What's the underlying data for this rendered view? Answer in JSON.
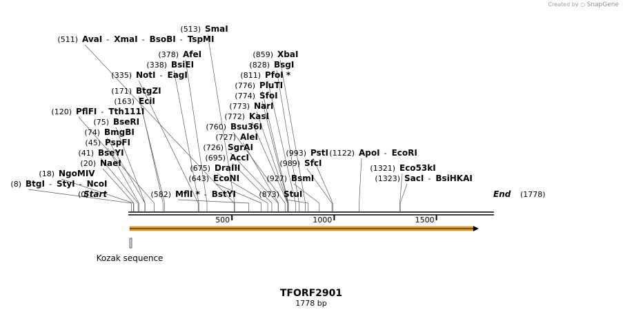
{
  "watermark": {
    "prefix": "Created by",
    "brand": "SnapGene"
  },
  "map": {
    "name": "TFORF2901",
    "length_label": "1778 bp",
    "length_bp": 1778,
    "ticks": [
      "500",
      "1000",
      "1500"
    ],
    "start_label": "Start",
    "start_pos": "(0)",
    "end_label": "End",
    "end_pos": "(1778)",
    "features": [
      {
        "name": "Kozak sequence",
        "type": "misc",
        "start": 0,
        "end": 10
      }
    ],
    "orf": {
      "start": 0,
      "end": 1680,
      "color": "#f0a020"
    },
    "sites": [
      {
        "pos": "(8)",
        "pos_bp": 8,
        "names": [
          "BtgI",
          "StyI",
          "NcoI"
        ]
      },
      {
        "pos": "(18)",
        "pos_bp": 18,
        "names": [
          "NgoMIV"
        ]
      },
      {
        "pos": "(20)",
        "pos_bp": 20,
        "names": [
          "NaeI"
        ]
      },
      {
        "pos": "(41)",
        "pos_bp": 41,
        "names": [
          "BseYI"
        ]
      },
      {
        "pos": "(45)",
        "pos_bp": 45,
        "names": [
          "PspFI"
        ]
      },
      {
        "pos": "(74)",
        "pos_bp": 74,
        "names": [
          "BmgBI"
        ]
      },
      {
        "pos": "(75)",
        "pos_bp": 75,
        "names": [
          "BseRI"
        ]
      },
      {
        "pos": "(120)",
        "pos_bp": 120,
        "names": [
          "PflFI",
          "Tth111I"
        ]
      },
      {
        "pos": "(163)",
        "pos_bp": 163,
        "names": [
          "EciI"
        ]
      },
      {
        "pos": "(171)",
        "pos_bp": 171,
        "names": [
          "BtgZI"
        ]
      },
      {
        "pos": "(335)",
        "pos_bp": 335,
        "names": [
          "NotI",
          "EagI"
        ]
      },
      {
        "pos": "(338)",
        "pos_bp": 338,
        "names": [
          "BsiEI"
        ]
      },
      {
        "pos": "(378)",
        "pos_bp": 378,
        "names": [
          "AfeI"
        ]
      },
      {
        "pos": "(511)",
        "pos_bp": 511,
        "names": [
          "AvaI",
          "XmaI",
          "BsoBI",
          "TspMI"
        ]
      },
      {
        "pos": "(513)",
        "pos_bp": 513,
        "names": [
          "SmaI"
        ]
      },
      {
        "pos": "(582)",
        "pos_bp": 582,
        "names": [
          "MflI *",
          "BstYI"
        ]
      },
      {
        "pos": "(643)",
        "pos_bp": 643,
        "names": [
          "EcoNI"
        ]
      },
      {
        "pos": "(675)",
        "pos_bp": 675,
        "names": [
          "DraIII"
        ]
      },
      {
        "pos": "(695)",
        "pos_bp": 695,
        "names": [
          "AccI"
        ]
      },
      {
        "pos": "(726)",
        "pos_bp": 726,
        "names": [
          "SgrAI"
        ]
      },
      {
        "pos": "(727)",
        "pos_bp": 727,
        "names": [
          "AleI"
        ]
      },
      {
        "pos": "(760)",
        "pos_bp": 760,
        "names": [
          "Bsu36I"
        ]
      },
      {
        "pos": "(772)",
        "pos_bp": 772,
        "names": [
          "KasI"
        ]
      },
      {
        "pos": "(773)",
        "pos_bp": 773,
        "names": [
          "NarI"
        ]
      },
      {
        "pos": "(774)",
        "pos_bp": 774,
        "names": [
          "SfoI"
        ]
      },
      {
        "pos": "(776)",
        "pos_bp": 776,
        "names": [
          "PluTI"
        ]
      },
      {
        "pos": "(811)",
        "pos_bp": 811,
        "names": [
          "PfoI *"
        ]
      },
      {
        "pos": "(828)",
        "pos_bp": 828,
        "names": [
          "BsgI"
        ]
      },
      {
        "pos": "(859)",
        "pos_bp": 859,
        "names": [
          "XbaI"
        ]
      },
      {
        "pos": "(873)",
        "pos_bp": 873,
        "names": [
          "StuI"
        ]
      },
      {
        "pos": "(927)",
        "pos_bp": 927,
        "names": [
          "BsmI"
        ]
      },
      {
        "pos": "(989)",
        "pos_bp": 989,
        "names": [
          "SfcI"
        ]
      },
      {
        "pos": "(993)",
        "pos_bp": 993,
        "names": [
          "PstI"
        ]
      },
      {
        "pos": "(1122)",
        "pos_bp": 1122,
        "names": [
          "ApoI",
          "EcoRI"
        ]
      },
      {
        "pos": "(1321)",
        "pos_bp": 1321,
        "names": [
          "Eco53kI"
        ]
      },
      {
        "pos": "(1323)",
        "pos_bp": 1323,
        "names": [
          "SacI",
          "BsiHKAI"
        ]
      }
    ]
  }
}
